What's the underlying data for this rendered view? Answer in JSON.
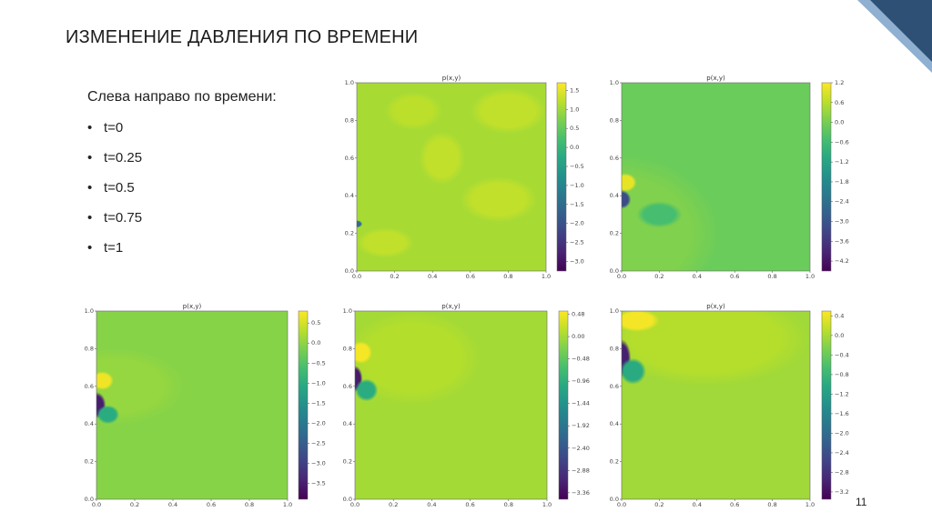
{
  "slide": {
    "title": "ИЗМЕНЕНИЕ ДАВЛЕНИЯ ПО ВРЕМЕНИ",
    "intro": "Слева направо по времени:",
    "bullets": [
      "t=0",
      "t=0.25",
      "t=0.5",
      "t=0.75",
      "t=1"
    ],
    "page_number": "11",
    "accent_color": "#2f5075",
    "accent_light_color": "#8fb0d0"
  },
  "chart_data": [
    {
      "type": "heatmap",
      "title": "p(x,y)",
      "xlim": [
        0,
        1
      ],
      "ylim": [
        0,
        1
      ],
      "xticks": [
        "0.0",
        "0.2",
        "0.4",
        "0.6",
        "0.8",
        "1.0"
      ],
      "yticks": [
        "0.0",
        "0.2",
        "0.4",
        "0.6",
        "0.8",
        "1.0"
      ],
      "colormap": "viridis",
      "color_range": [
        -3.25,
        1.7
      ],
      "colorbar_ticks": [
        "1.5",
        "1.0",
        "0.5",
        "0.0",
        "−0.5",
        "−1.0",
        "−1.5",
        "−2.0",
        "−2.5",
        "−3.0"
      ]
    },
    {
      "type": "heatmap",
      "title": "p(x,y)",
      "xlim": [
        0,
        1
      ],
      "ylim": [
        0,
        1
      ],
      "xticks": [
        "0.0",
        "0.2",
        "0.4",
        "0.6",
        "0.8",
        "1.0"
      ],
      "yticks": [
        "0.0",
        "0.2",
        "0.4",
        "0.6",
        "0.8",
        "1.0"
      ],
      "colormap": "viridis",
      "color_range": [
        -4.5,
        1.2
      ],
      "colorbar_ticks": [
        "1.2",
        "0.6",
        "0.0",
        "−0.6",
        "−1.2",
        "−1.8",
        "−2.4",
        "−3.0",
        "−3.6",
        "−4.2"
      ]
    },
    {
      "type": "heatmap",
      "title": "p(x,y)",
      "xlim": [
        0,
        1
      ],
      "ylim": [
        0,
        1
      ],
      "xticks": [
        "0.0",
        "0.2",
        "0.4",
        "0.6",
        "0.8",
        "1.0"
      ],
      "yticks": [
        "0.0",
        "0.2",
        "0.4",
        "0.6",
        "0.8",
        "1.0"
      ],
      "colormap": "viridis",
      "color_range": [
        -3.9,
        0.8
      ],
      "colorbar_ticks": [
        "0.5",
        "0.0",
        "−0.5",
        "−1.0",
        "−1.5",
        "−2.0",
        "−2.5",
        "−3.0",
        "−3.5"
      ]
    },
    {
      "type": "heatmap",
      "title": "p(x,y)",
      "xlim": [
        0,
        1
      ],
      "ylim": [
        0,
        1
      ],
      "xticks": [
        "0.0",
        "0.2",
        "0.4",
        "0.6",
        "0.8",
        "1.0"
      ],
      "yticks": [
        "0.0",
        "0.2",
        "0.4",
        "0.6",
        "0.8",
        "1.0"
      ],
      "colormap": "viridis",
      "color_range": [
        -3.5,
        0.55
      ],
      "colorbar_ticks": [
        "0.48",
        "0.00",
        "−0.48",
        "−0.96",
        "−1.44",
        "−1.92",
        "−2.40",
        "−2.88",
        "−3.36"
      ]
    },
    {
      "type": "heatmap",
      "title": "p(x,y)",
      "xlim": [
        0,
        1
      ],
      "ylim": [
        0,
        1
      ],
      "xticks": [
        "0.0",
        "0.2",
        "0.4",
        "0.6",
        "0.8",
        "1.0"
      ],
      "yticks": [
        "0.0",
        "0.2",
        "0.4",
        "0.6",
        "0.8",
        "1.0"
      ],
      "colormap": "viridis",
      "color_range": [
        -3.35,
        0.5
      ],
      "colorbar_ticks": [
        "0.4",
        "0.0",
        "−0.4",
        "−0.8",
        "−1.2",
        "−1.6",
        "−2.0",
        "−2.4",
        "−2.8",
        "−3.2"
      ]
    }
  ]
}
